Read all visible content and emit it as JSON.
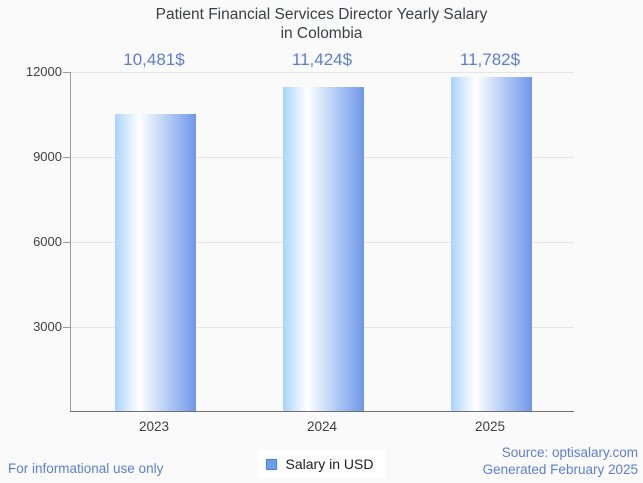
{
  "title": {
    "line1": "Patient Financial Services Director Yearly Salary",
    "line2": "in Colombia"
  },
  "chart_data": {
    "type": "bar",
    "title": "Patient Financial Services Director Yearly Salary in Colombia",
    "categories": [
      "2023",
      "2024",
      "2025"
    ],
    "series": [
      {
        "name": "Salary in USD",
        "values": [
          10481,
          11424,
          11782
        ]
      }
    ],
    "value_labels": [
      "10,481$",
      "11,424$",
      "11,782$"
    ],
    "xlabel": "",
    "ylabel": "",
    "ylim": [
      0,
      12000
    ],
    "yticks": [
      12000,
      9000,
      6000,
      3000
    ],
    "grid": true,
    "legend_position": "bottom"
  },
  "legend": {
    "label": "Salary in USD"
  },
  "footer": {
    "disclaimer": "For informational use only",
    "source": "Source: optisalary.com",
    "generated": "Generated February 2025"
  },
  "colors": {
    "background": "#fafafa",
    "title_text": "#3c4043",
    "accent_text": "#5b7ed7",
    "bar_gradient_left": "#abd4fb",
    "bar_gradient_mid": "#ffffff",
    "bar_gradient_right": "#6d98e9",
    "legend_swatch": "#6d9eeb",
    "gridline": "#e6e6e6"
  }
}
